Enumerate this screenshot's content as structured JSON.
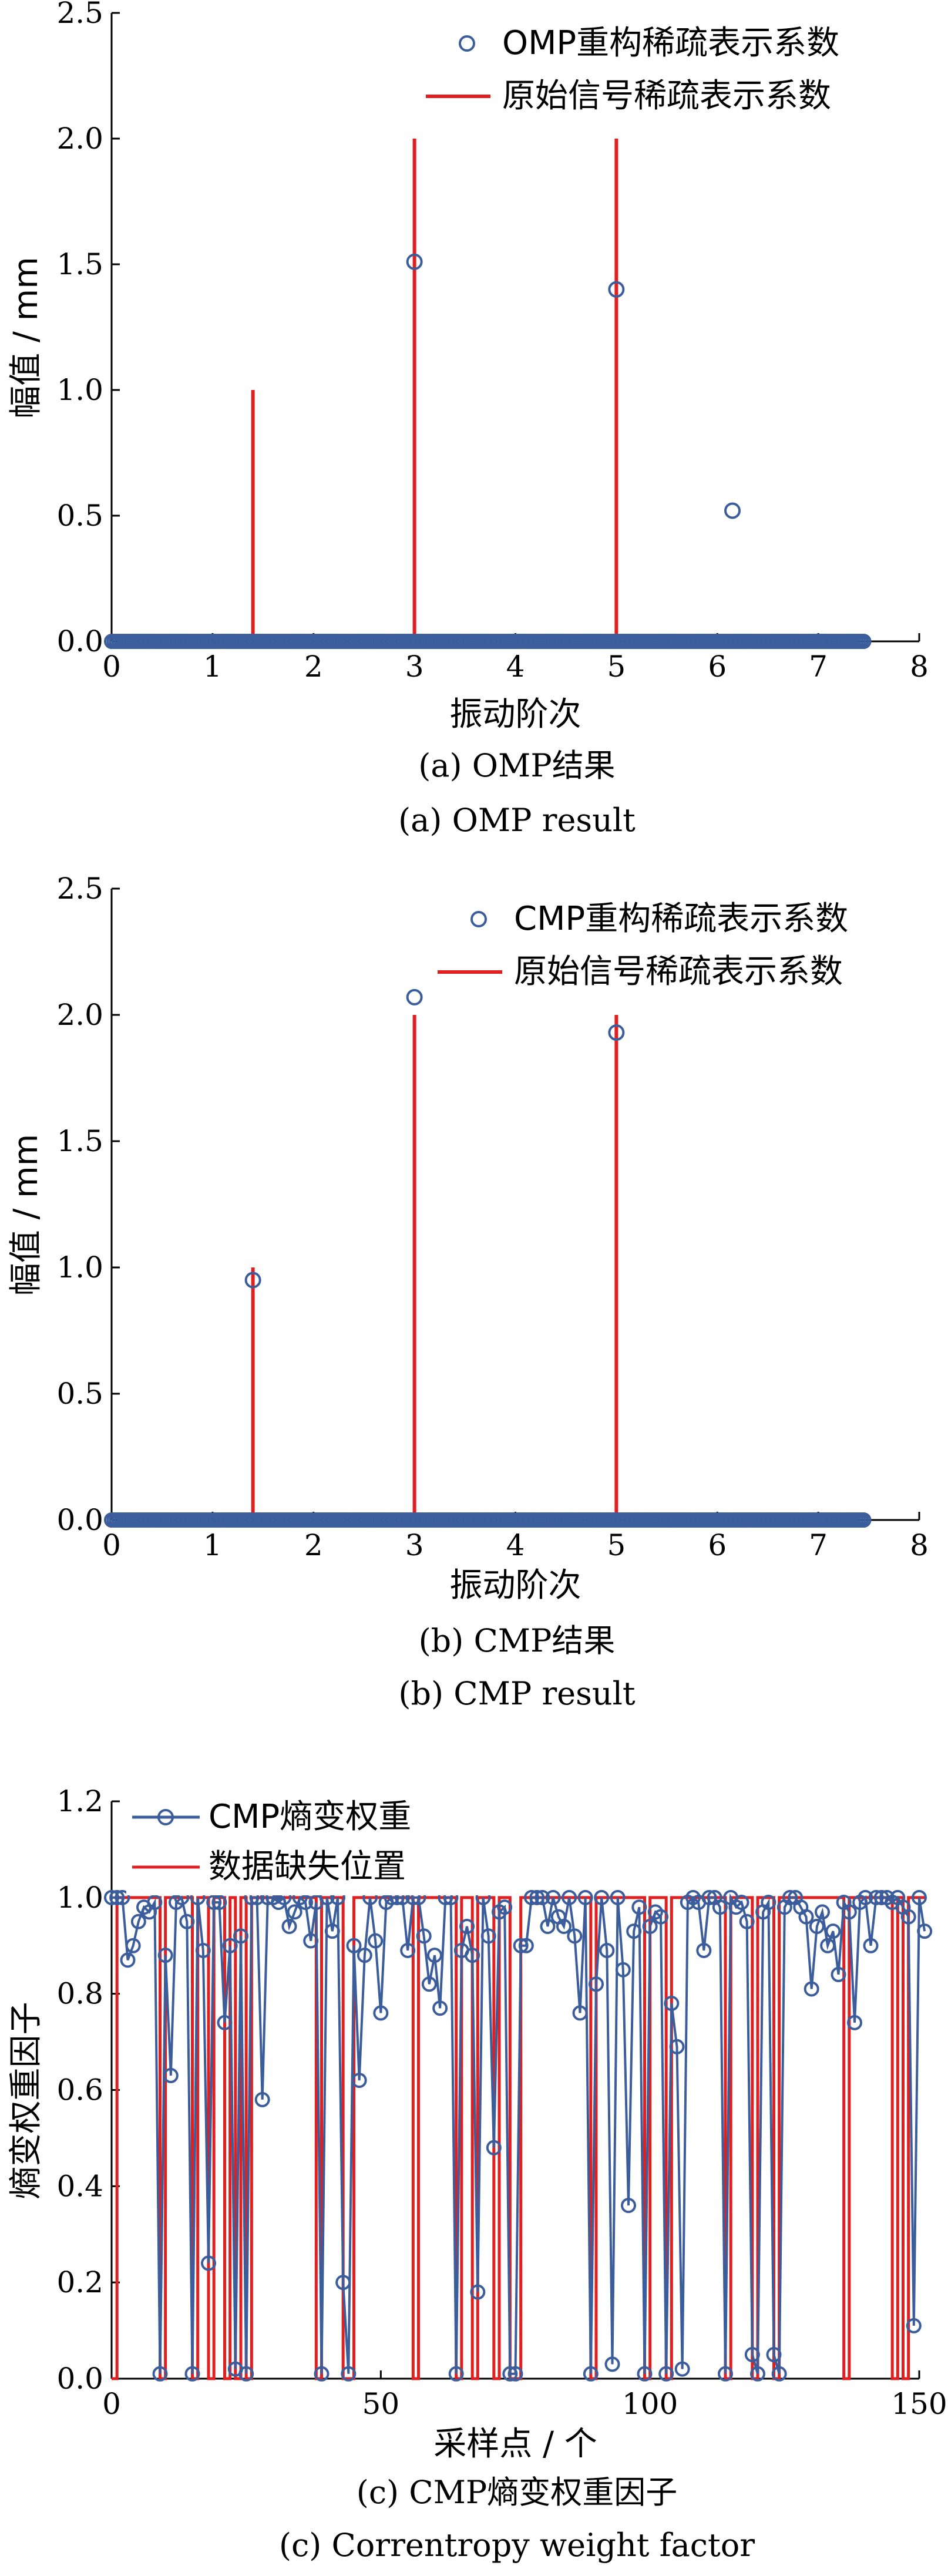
{
  "colors": {
    "marker": "#3b5d9c",
    "line": "#e02020",
    "axis": "#000000"
  },
  "chart_data": [
    {
      "type": "scatter",
      "ylabel": "幅值 / mm",
      "xlabel": "振动阶次",
      "xlim": [
        0,
        8
      ],
      "ylim": [
        0,
        2.5
      ],
      "xticks": [
        "0",
        "1",
        "2",
        "3",
        "4",
        "5",
        "6",
        "7",
        "8"
      ],
      "yticks": [
        "0.0",
        "0.5",
        "1.0",
        "1.5",
        "2.0",
        "2.5"
      ],
      "legend": [
        "OMP重构稀疏表示系数",
        "原始信号稀疏表示系数"
      ],
      "legend_position": "top-right",
      "caption_cn": "(a)  OMP结果",
      "caption_en": "(a) OMP result",
      "baseline_range": [
        0,
        7.45
      ],
      "reconstructed_points": [
        [
          3.0,
          1.51
        ],
        [
          5.0,
          1.4
        ],
        [
          6.15,
          0.52
        ]
      ],
      "original_spikes": [
        [
          1.4,
          1.0
        ],
        [
          3.0,
          2.0
        ],
        [
          5.0,
          2.0
        ]
      ]
    },
    {
      "type": "scatter",
      "ylabel": "幅值 / mm",
      "xlabel": "振动阶次",
      "xlim": [
        0,
        8
      ],
      "ylim": [
        0,
        2.5
      ],
      "xticks": [
        "0",
        "1",
        "2",
        "3",
        "4",
        "5",
        "6",
        "7",
        "8"
      ],
      "yticks": [
        "0.0",
        "0.5",
        "1.0",
        "1.5",
        "2.0",
        "2.5"
      ],
      "legend": [
        "CMP重构稀疏表示系数",
        "原始信号稀疏表示系数"
      ],
      "legend_position": "top-right",
      "caption_cn": "(b)  CMP结果",
      "caption_en": "(b) CMP result",
      "baseline_range": [
        0,
        7.45
      ],
      "reconstructed_points": [
        [
          1.4,
          0.95
        ],
        [
          3.0,
          2.07
        ],
        [
          5.0,
          1.93
        ]
      ],
      "original_spikes": [
        [
          1.4,
          1.0
        ],
        [
          3.0,
          2.0
        ],
        [
          5.0,
          2.0
        ]
      ]
    },
    {
      "type": "line",
      "ylabel": "熵变权重因子",
      "xlabel": "采样点 / 个",
      "xlim": [
        0,
        150
      ],
      "ylim": [
        0,
        1.2
      ],
      "xticks": [
        "0",
        "50",
        "100",
        "150"
      ],
      "yticks": [
        "0.0",
        "0.2",
        "0.4",
        "0.6",
        "0.8",
        "1.0",
        "1.2"
      ],
      "legend": [
        "CMP熵变权重",
        "数据缺失位置"
      ],
      "legend_position": "top-left",
      "caption_cn": "(c)  CMP熵变权重因子",
      "caption_en": "(c) Correntropy weight factor",
      "weight": [
        1.0,
        1.0,
        1.0,
        0.87,
        0.9,
        0.95,
        0.98,
        0.97,
        0.99,
        0.01,
        0.88,
        0.63,
        0.99,
        1.0,
        0.95,
        0.01,
        1.0,
        0.89,
        0.24,
        0.99,
        0.99,
        0.74,
        0.9,
        0.02,
        0.92,
        0.01,
        1.0,
        1.0,
        0.58,
        1.0,
        1.0,
        0.99,
        1.0,
        0.94,
        0.97,
        1.0,
        0.99,
        0.91,
        0.99,
        0.01,
        1.0,
        0.93,
        1.0,
        0.2,
        0.01,
        0.9,
        0.62,
        0.88,
        1.0,
        0.91,
        0.76,
        0.99,
        1.0,
        1.0,
        1.0,
        0.89,
        1.0,
        1.0,
        0.92,
        0.82,
        0.88,
        0.77,
        1.0,
        1.0,
        0.01,
        0.89,
        0.94,
        0.88,
        0.18,
        1.0,
        0.92,
        0.48,
        0.97,
        0.98,
        0.01,
        0.01,
        0.9,
        0.9,
        1.0,
        1.0,
        1.0,
        0.94,
        1.0,
        0.96,
        0.94,
        1.0,
        0.92,
        0.76,
        1.0,
        0.01,
        0.82,
        1.0,
        0.89,
        0.03,
        1.0,
        0.85,
        0.36,
        0.93,
        0.98,
        0.01,
        0.94,
        0.97,
        0.96,
        0.01,
        0.78,
        0.69,
        0.02,
        0.99,
        1.0,
        0.99,
        0.89,
        1.0,
        1.0,
        0.98,
        0.01,
        1.0,
        0.98,
        0.99,
        0.95,
        0.05,
        0.01,
        0.97,
        0.99,
        0.05,
        0.01,
        0.98,
        1.0,
        1.0,
        0.98,
        0.96,
        0.81,
        0.94,
        0.97,
        0.9,
        0.93,
        0.84,
        0.99,
        0.97,
        0.74,
        0.99,
        1.0,
        0.9,
        1.0,
        1.0,
        1.0,
        0.99,
        1.0,
        0.98,
        0.96,
        0.11,
        1.0,
        0.93
      ],
      "missing_positions": [
        0,
        9,
        15,
        18,
        21,
        23,
        25,
        38,
        43,
        44,
        56,
        64,
        67,
        71,
        74,
        75,
        89,
        99,
        103,
        114,
        119,
        123,
        136,
        145,
        147
      ]
    }
  ]
}
